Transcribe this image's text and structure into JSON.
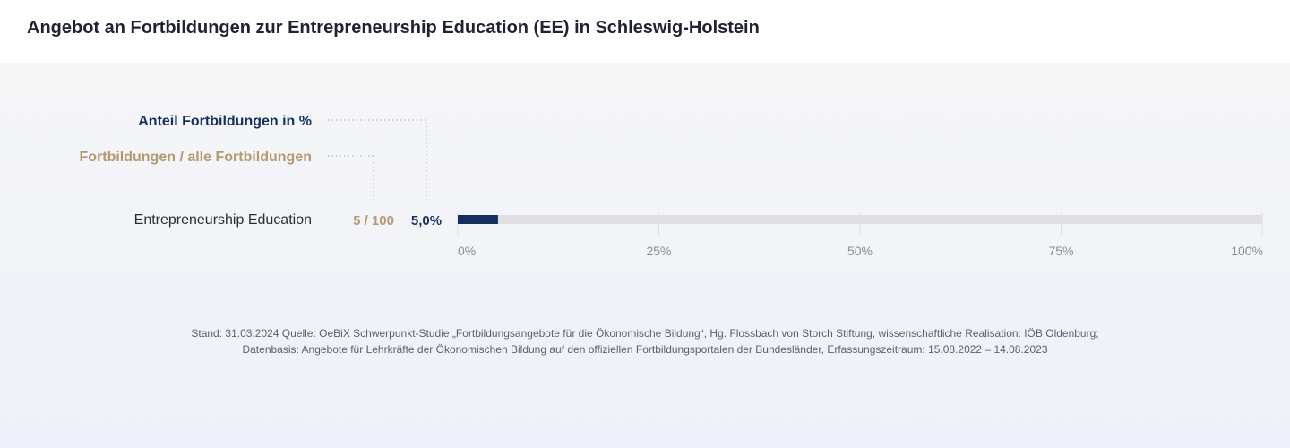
{
  "title": "Angebot an Fortbildungen zur Entrepreneurship Education (EE) in Schleswig-Holstein",
  "colors": {
    "share": "#14305f",
    "count": "#b39a70",
    "track": "#e0e0e2",
    "category": "#2a2d36",
    "tick": "#8a8d96",
    "leader": "#b5b7bd"
  },
  "legend": {
    "share_label": "Anteil Fortbildungen  in %",
    "count_label": "Fortbildungen / alle Fortbildungen"
  },
  "chart_data": {
    "type": "bar",
    "orientation": "horizontal",
    "categories": [
      "Entrepreneurship Education"
    ],
    "series": [
      {
        "name": "Anteil Fortbildungen  in %",
        "values": [
          5.0
        ]
      }
    ],
    "count_labels": [
      "5 / 100"
    ],
    "value_labels": [
      "5,0%"
    ],
    "xlim": [
      0,
      100
    ],
    "xticks": [
      0,
      25,
      50,
      75,
      100
    ],
    "xtick_labels": [
      "0%",
      "25%",
      "50%",
      "75%",
      "100%"
    ],
    "grid": true
  },
  "footnote": {
    "line1": "Stand: 31.03.2024 Quelle: OeBiX Schwerpunkt-Studie „Fortbildungsangebote für die Ökonomische Bildung“, Hg. Flossbach von Storch Stiftung, wissenschaftliche Realisation: IÖB Oldenburg;",
    "line2": "Datenbasis: Angebote für Lehrkräfte der Ökonomischen Bildung auf den offiziellen Fortbildungsportalen der Bundesländer, Erfassungszeitraum: 15.08.2022 – 14.08.2023"
  }
}
